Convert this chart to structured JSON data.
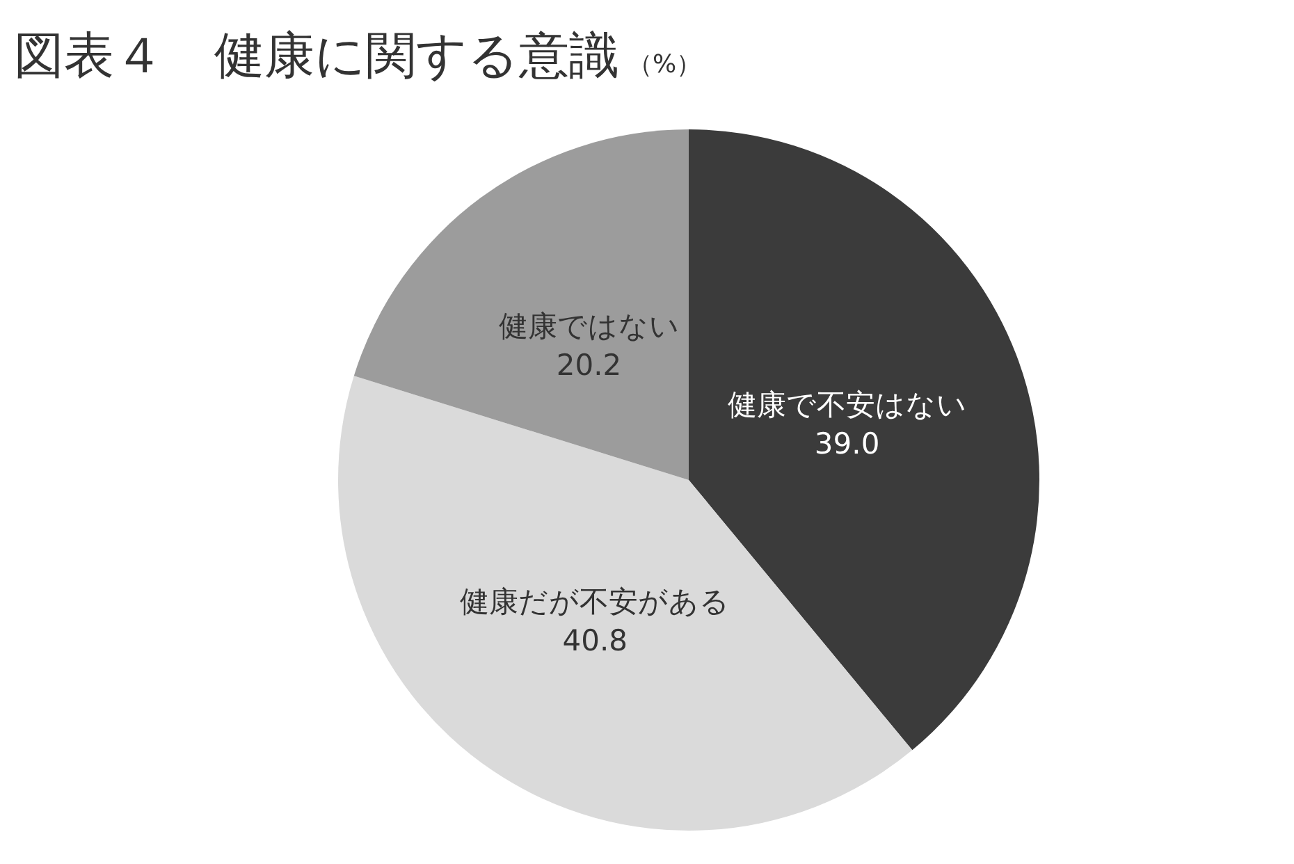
{
  "chart_data": {
    "type": "pie",
    "title": "図表４　健康に関する意識",
    "subtitle": "（%）",
    "categories": [
      "健康で不安はない",
      "健康だが不安がある",
      "健康ではない"
    ],
    "values": [
      39.0,
      40.8,
      20.2
    ],
    "value_labels": [
      "39.0",
      "40.8",
      "20.2"
    ],
    "colors": [
      "#3b3b3b",
      "#dadada",
      "#9c9c9c"
    ],
    "legend": false
  }
}
